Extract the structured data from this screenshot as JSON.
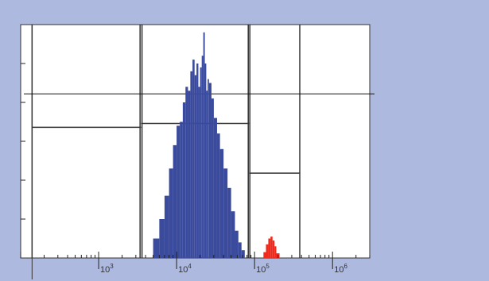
{
  "chart_data": {
    "type": "histogram",
    "title": "",
    "xlabel": "",
    "ylabel": "",
    "x_scale": "log",
    "x_range": [
      100,
      3000000
    ],
    "y_range": [
      0,
      6
    ],
    "grid": false,
    "x_tick_labels": [
      {
        "base": "10",
        "exp": "3",
        "value": 1000
      },
      {
        "base": "10",
        "exp": "4",
        "value": 10000
      },
      {
        "base": "10",
        "exp": "5",
        "value": 100000
      },
      {
        "base": "10",
        "exp": "6",
        "value": 1000000
      }
    ],
    "series": [
      {
        "color": "#3a4a9c",
        "bins": [
          [
            5000,
            0.5
          ],
          [
            6000,
            1.0
          ],
          [
            7000,
            1.6
          ],
          [
            8000,
            2.3
          ],
          [
            9000,
            2.9
          ],
          [
            10000,
            3.4
          ],
          [
            11000,
            3.5
          ],
          [
            12000,
            4.0
          ],
          [
            13000,
            4.4
          ],
          [
            14000,
            4.3
          ],
          [
            15000,
            4.8
          ],
          [
            16000,
            5.1
          ],
          [
            17000,
            4.7
          ],
          [
            18000,
            5.0
          ],
          [
            19000,
            4.4
          ],
          [
            20000,
            4.9
          ],
          [
            21000,
            5.2
          ],
          [
            22000,
            5.8
          ],
          [
            23000,
            5.0
          ],
          [
            24000,
            4.3
          ],
          [
            25000,
            4.6
          ],
          [
            26000,
            4.5
          ],
          [
            28000,
            4.1
          ],
          [
            30000,
            3.6
          ],
          [
            33000,
            3.2
          ],
          [
            36000,
            2.8
          ],
          [
            40000,
            2.3
          ],
          [
            45000,
            1.8
          ],
          [
            50000,
            1.2
          ],
          [
            56000,
            0.7
          ],
          [
            62000,
            0.4
          ],
          [
            68000,
            0.2
          ]
        ]
      },
      {
        "color": "#ee2b1c",
        "bins": [
          [
            130000,
            0.15
          ],
          [
            140000,
            0.35
          ],
          [
            150000,
            0.5
          ],
          [
            160000,
            0.55
          ],
          [
            170000,
            0.45
          ],
          [
            180000,
            0.3
          ],
          [
            190000,
            0.12
          ]
        ]
      }
    ],
    "gates": [
      {
        "x_from": 140,
        "x_to": 3500,
        "y": 3.36
      },
      {
        "x_from": 3500,
        "x_to": 85000,
        "y": 3.46
      },
      {
        "x_from": 85000,
        "x_to": 380000,
        "y": 2.18
      }
    ],
    "gate_boundaries": [
      140,
      3400,
      3600,
      83000,
      87000,
      380000
    ],
    "threshold_y": 4.22
  }
}
